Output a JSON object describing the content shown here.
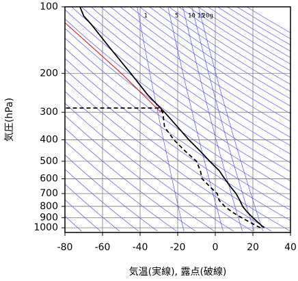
{
  "chart_data": {
    "type": "skewt",
    "y_label": "気圧(hPa)",
    "x_label": "気温(実線), 露点(破線)",
    "xlim": [
      -80,
      40
    ],
    "xticks": [
      -80,
      -60,
      -40,
      -20,
      0,
      20,
      40
    ],
    "ylim": [
      100,
      1050
    ],
    "yticks": [
      100,
      200,
      300,
      400,
      500,
      600,
      700,
      800,
      900,
      1000
    ],
    "log_y": true,
    "grid": true,
    "mixing_ratios": [
      {
        "value": 1,
        "label": "1"
      },
      {
        "value": 5,
        "label": "5"
      },
      {
        "value": 10,
        "label": "10"
      },
      {
        "value": 15,
        "label": "15"
      },
      {
        "value": 20,
        "label": "20g"
      }
    ],
    "series": [
      {
        "color": "#000000",
        "dash": false,
        "y": [
          1000,
          950,
          900,
          850,
          800,
          750,
          700,
          650,
          600,
          550,
          500,
          450,
          400,
          350,
          300,
          250,
          200,
          150,
          120,
          110,
          100
        ],
        "x": [
          26,
          23,
          20,
          17,
          14.5,
          13,
          11,
          8,
          5,
          2,
          -3,
          -8,
          -14,
          -20,
          -27,
          -36,
          -45,
          -57,
          -66,
          -70,
          -72
        ]
      },
      {
        "color": "#000000",
        "dash": true,
        "y": [
          1000,
          950,
          900,
          850,
          800,
          750,
          700,
          650,
          600,
          550,
          500,
          450,
          400,
          350,
          300,
          287,
          287
        ],
        "x": [
          24,
          19,
          14,
          9,
          5,
          2,
          1,
          -3,
          -7,
          -8,
          -10,
          -16,
          -22,
          -27,
          -28,
          -30,
          -80
        ]
      },
      {
        "color": "#e00000",
        "dash": false,
        "y": [
          118,
          200,
          300
        ],
        "x": [
          -80,
          -50,
          -29
        ]
      }
    ]
  }
}
